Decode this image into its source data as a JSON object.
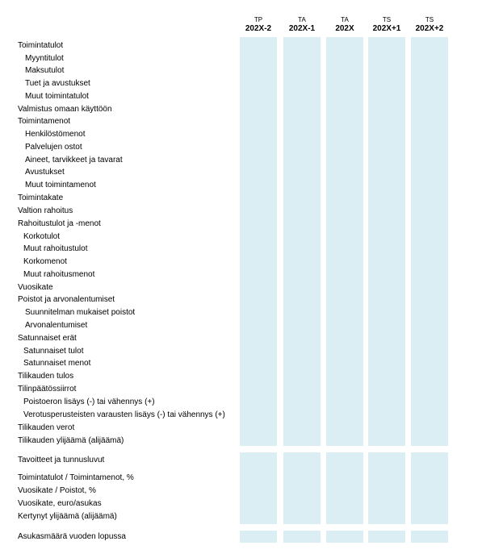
{
  "columns": [
    {
      "top": "TP",
      "year": "202X-2"
    },
    {
      "top": "TA",
      "year": "202X-1"
    },
    {
      "top": "TA",
      "year": "202X"
    },
    {
      "top": "TS",
      "year": "202X+1"
    },
    {
      "top": "TS",
      "year": "202X+2"
    }
  ],
  "rows": {
    "r0": "Toimintatulot",
    "r1": "Myyntitulot",
    "r2": "Maksutulot",
    "r3": "Tuet ja avustukset",
    "r4": "Muut toimintatulot",
    "r5": "Valmistus omaan käyttöön",
    "r6": "Toimintamenot",
    "r7": "Henkilöstömenot",
    "r8": "Palvelujen ostot",
    "r9": "Aineet, tarvikkeet ja tavarat",
    "r10": "Avustukset",
    "r11": "Muut toimintamenot",
    "r12": "Toimintakate",
    "r13": "Valtion rahoitus",
    "r14": "Rahoitustulot ja -menot",
    "r15": "Korkotulot",
    "r16": "Muut rahoitustulot",
    "r17": "Korkomenot",
    "r18": "Muut rahoitusmenot",
    "r19": "Vuosikate",
    "r20": "Poistot ja arvonalentumiset",
    "r21": "Suunnitelman mukaiset poistot",
    "r22": "Arvonalentumiset",
    "r23": "Satunnaiset erät",
    "r24": "Satunnaiset tulot",
    "r25": "Satunnaiset menot",
    "r26": "Tilikauden tulos",
    "r27": "Tilinpäätössiirrot",
    "r28": "Poistoeron lisäys (-) tai vähennys (+)",
    "r29": "Verotusperusteisten varausten lisäys (-) tai vähennys (+)",
    "r30": "Tilikauden verot",
    "r31": "Tilikauden ylijäämä (alijäämä)"
  },
  "targets": {
    "title": "Tavoitteet ja tunnusluvut",
    "t1": "Toimintatulot / Toimintamenot, %",
    "t2": "Vuosikate / Poistot, %",
    "t3": "Vuosikate, euro/asukas",
    "t4": "Kertynyt ylijäämä (alijäämä)"
  },
  "population": {
    "label": "Asukasmäärä vuoden lopussa"
  },
  "colors": {
    "band": "#dbeef4"
  }
}
